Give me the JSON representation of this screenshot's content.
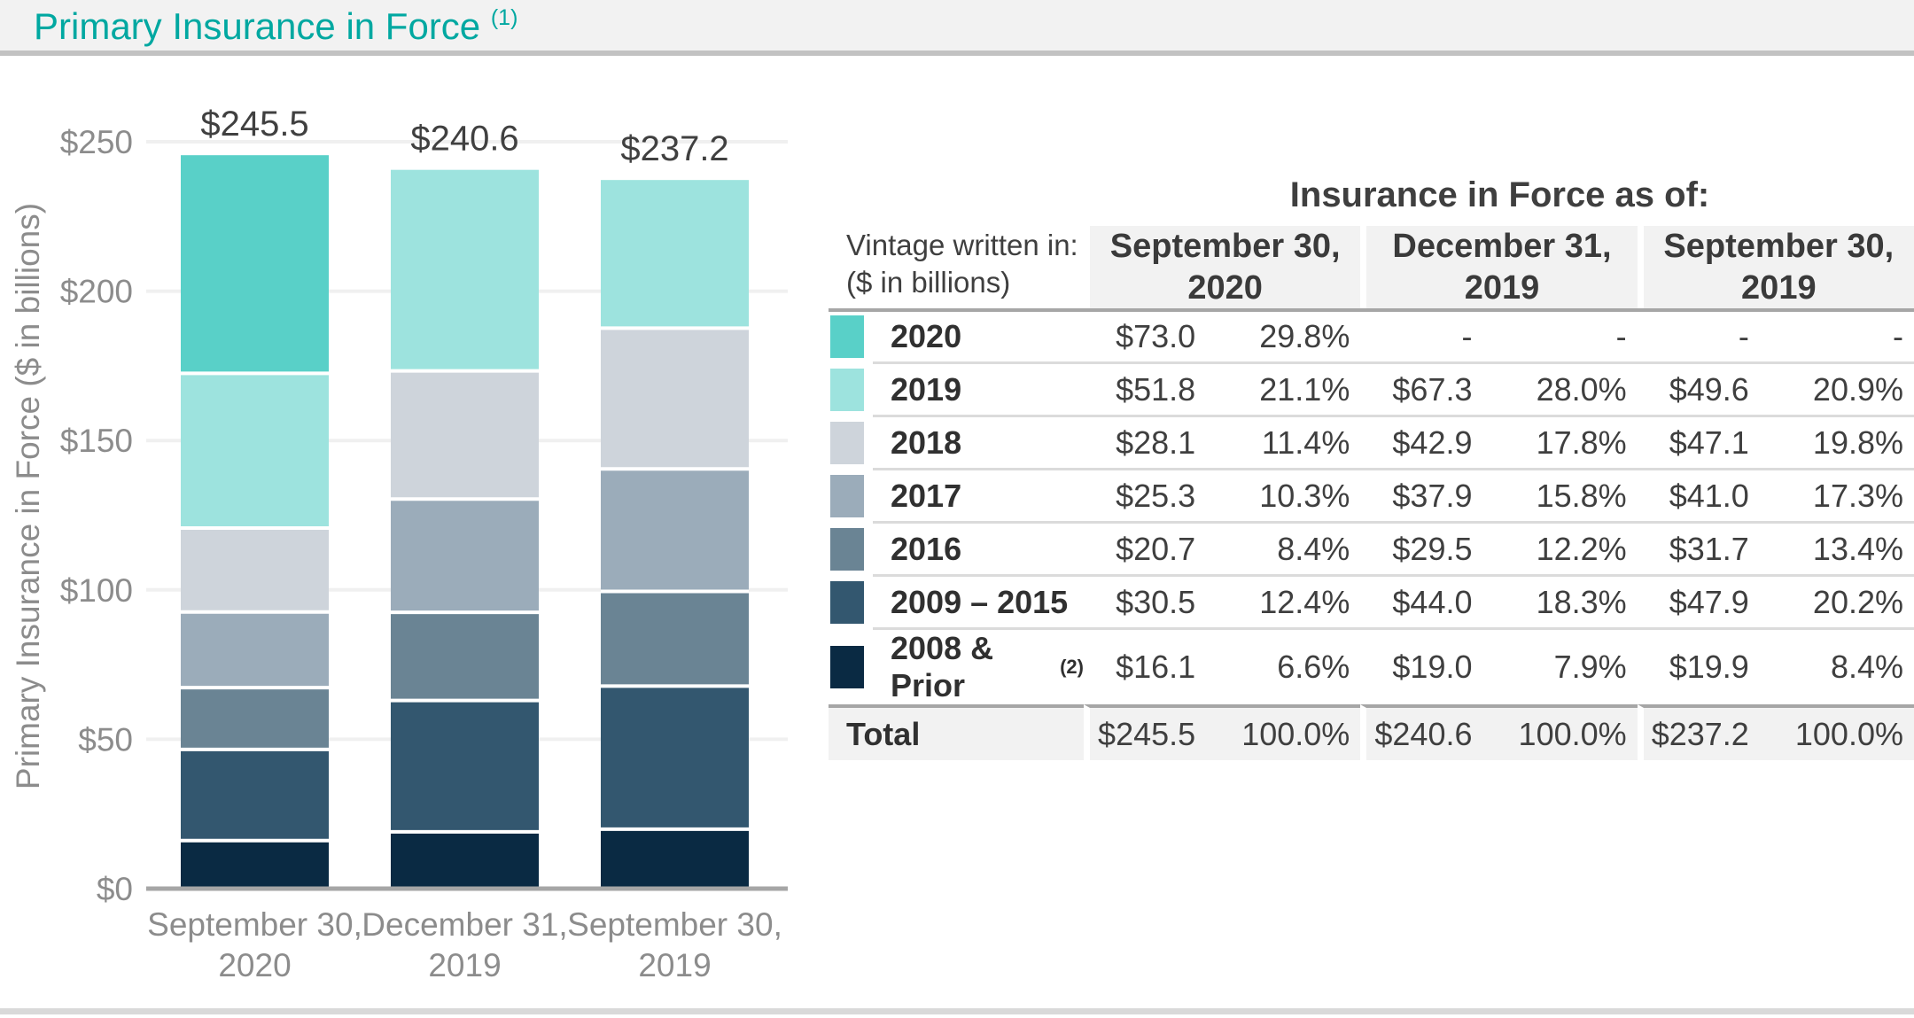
{
  "page": {
    "title": "Primary Insurance in Force",
    "title_superscript": "(1)"
  },
  "chart_data": {
    "type": "bar",
    "stacked": true,
    "ylabel": "Primary Insurance in Force ($ in billions)",
    "ylim": [
      0,
      250
    ],
    "ytick_step": 50,
    "ytick_labels": [
      "$0",
      "$50",
      "$100",
      "$150",
      "$200",
      "$250"
    ],
    "grid": "horizontal",
    "categories": [
      [
        "September 30,",
        "2020"
      ],
      [
        "December 31,",
        "2019"
      ],
      [
        "September 30,",
        "2019"
      ]
    ],
    "bar_total_labels": [
      "$245.5",
      "$240.6",
      "$237.2"
    ],
    "series": [
      {
        "name": "2008 & Prior",
        "color": "#0A2A43",
        "values": [
          16.1,
          19.0,
          19.9
        ]
      },
      {
        "name": "2009 – 2015",
        "color": "#33576F",
        "values": [
          30.5,
          44.0,
          47.9
        ]
      },
      {
        "name": "2016",
        "color": "#6A8494",
        "values": [
          20.7,
          29.5,
          31.7
        ]
      },
      {
        "name": "2017",
        "color": "#9BACBA",
        "values": [
          25.3,
          37.9,
          41.0
        ]
      },
      {
        "name": "2018",
        "color": "#CED4DB",
        "values": [
          28.1,
          42.9,
          47.1
        ]
      },
      {
        "name": "2019",
        "color": "#9DE3DE",
        "values": [
          51.8,
          67.3,
          49.6
        ]
      },
      {
        "name": "2020",
        "color": "#59D0C8",
        "values": [
          73.0,
          0,
          0
        ]
      }
    ]
  },
  "table": {
    "heading": "Insurance in Force as of:",
    "row_header_line1": "Vintage written in:",
    "row_header_line2": "($ in billions)",
    "column_groups": [
      {
        "line1": "September 30,",
        "line2": "2020"
      },
      {
        "line1": "December 31,",
        "line2": "2019"
      },
      {
        "line1": "September 30,",
        "line2": "2019"
      }
    ],
    "rows": [
      {
        "label": "2020",
        "superscript": "",
        "swatch": "#59D0C8",
        "values": [
          "$73.0",
          "29.8%",
          "-",
          "-",
          "-",
          "-"
        ]
      },
      {
        "label": "2019",
        "superscript": "",
        "swatch": "#9DE3DE",
        "values": [
          "$51.8",
          "21.1%",
          "$67.3",
          "28.0%",
          "$49.6",
          "20.9%"
        ]
      },
      {
        "label": "2018",
        "superscript": "",
        "swatch": "#CED4DB",
        "values": [
          "$28.1",
          "11.4%",
          "$42.9",
          "17.8%",
          "$47.1",
          "19.8%"
        ]
      },
      {
        "label": "2017",
        "superscript": "",
        "swatch": "#9BACBA",
        "values": [
          "$25.3",
          "10.3%",
          "$37.9",
          "15.8%",
          "$41.0",
          "17.3%"
        ]
      },
      {
        "label": "2016",
        "superscript": "",
        "swatch": "#6A8494",
        "values": [
          "$20.7",
          "8.4%",
          "$29.5",
          "12.2%",
          "$31.7",
          "13.4%"
        ]
      },
      {
        "label": "2009 – 2015",
        "superscript": "",
        "swatch": "#33576F",
        "values": [
          "$30.5",
          "12.4%",
          "$44.0",
          "18.3%",
          "$47.9",
          "20.2%"
        ]
      },
      {
        "label": "2008 & Prior",
        "superscript": "(2)",
        "swatch": "#0A2A43",
        "values": [
          "$16.1",
          "6.6%",
          "$19.0",
          "7.9%",
          "$19.9",
          "8.4%"
        ]
      }
    ],
    "total_row": {
      "label": "Total",
      "values": [
        "$245.5",
        "100.0%",
        "$240.6",
        "100.0%",
        "$237.2",
        "100.0%"
      ]
    }
  }
}
